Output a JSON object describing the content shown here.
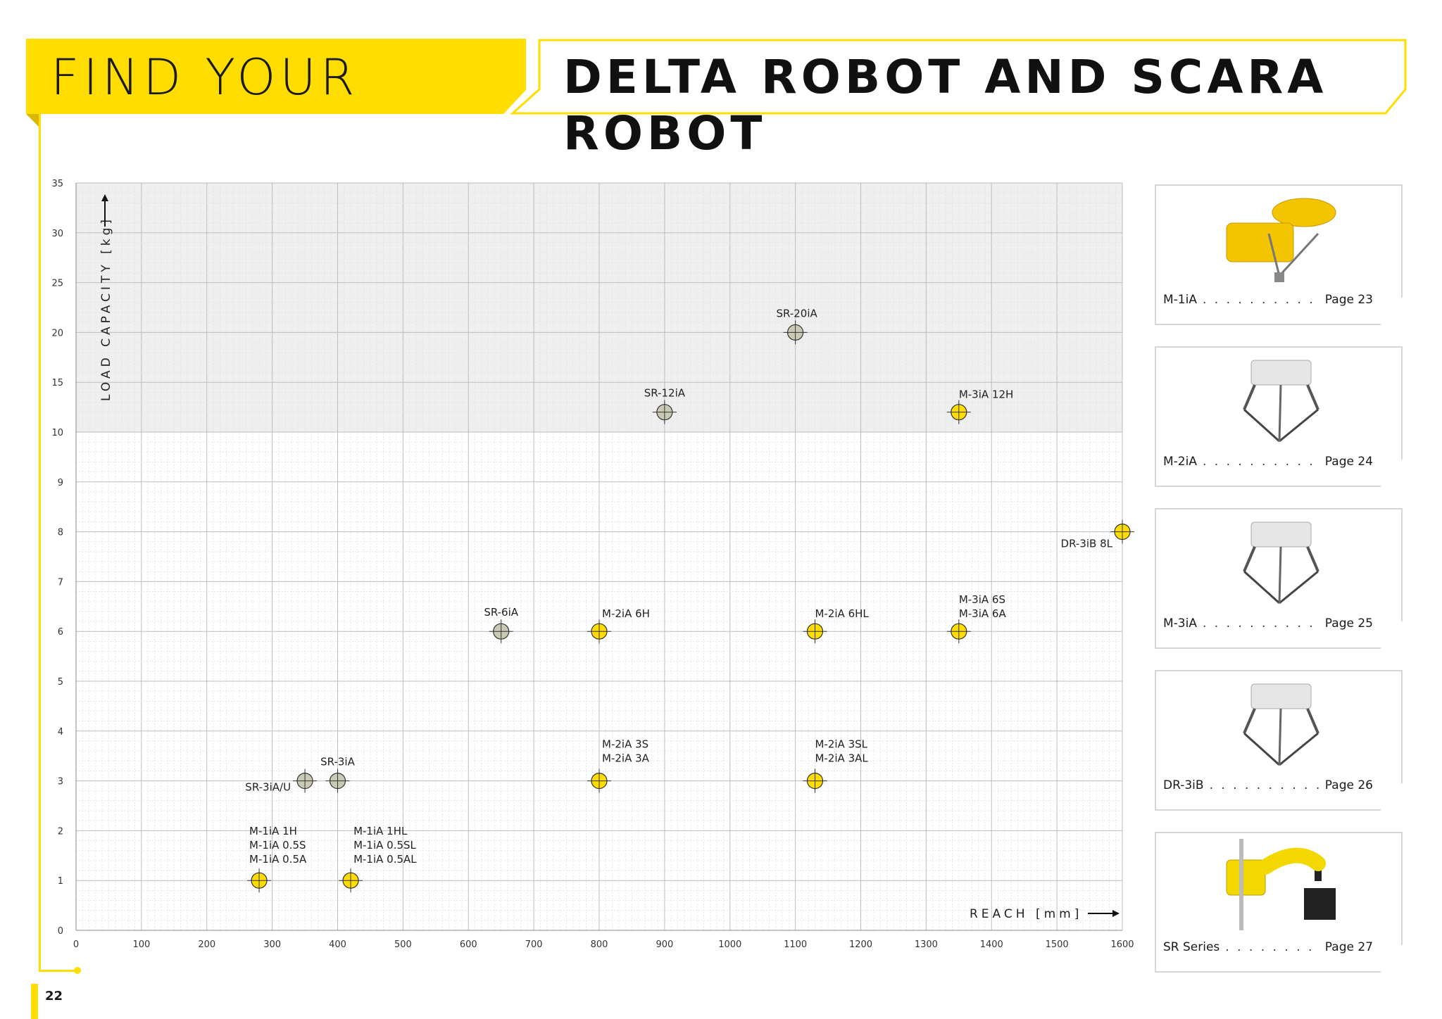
{
  "header": {
    "title_prefix": "FIND YOUR",
    "title_main": "DELTA ROBOT AND SCARA ROBOT"
  },
  "page_number": "22",
  "colors": {
    "accent": "#ffdd00",
    "delta_point": "#ffdd00",
    "scara_point": "#c9c9b4",
    "zone_fill": "#efefef"
  },
  "chart_data": {
    "type": "scatter",
    "xlabel": "REACH [mm]",
    "ylabel": "LOAD CAPACITY [kg]",
    "xlim": [
      0,
      1600
    ],
    "x_ticks": [
      0,
      100,
      200,
      300,
      400,
      500,
      600,
      700,
      800,
      900,
      1000,
      1100,
      1200,
      1300,
      1400,
      1500,
      1600
    ],
    "y_ticks": [
      0,
      1,
      2,
      3,
      4,
      5,
      6,
      7,
      8,
      9,
      10,
      15,
      20,
      25,
      30,
      35
    ],
    "y_scale": "piecewise linear: 0-10 kg in 1 kg steps, 10-35 kg in 5 kg steps (same spacing)",
    "shaded_region": [
      10,
      35
    ],
    "grid": true,
    "series": [
      {
        "points": [
          {
            "x": 280,
            "y": 1,
            "label": [
              "M-1iA 1H",
              "M-1iA 0.5S",
              "M-1iA 0.5A"
            ]
          },
          {
            "x": 420,
            "y": 1,
            "label": [
              "M-1iA 1HL",
              "M-1iA 0.5SL",
              "M-1iA 0.5AL"
            ]
          },
          {
            "x": 800,
            "y": 3,
            "label": [
              "M-2iA 3S",
              "M-2iA 3A"
            ]
          },
          {
            "x": 1130,
            "y": 3,
            "label": [
              "M-2iA 3SL",
              "M-2iA 3AL"
            ]
          },
          {
            "x": 800,
            "y": 6,
            "label": [
              "M-2iA 6H"
            ]
          },
          {
            "x": 1130,
            "y": 6,
            "label": [
              "M-2iA 6HL"
            ]
          },
          {
            "x": 1350,
            "y": 6,
            "label": [
              "M-3iA 6S",
              "M-3iA 6A"
            ]
          },
          {
            "x": 1350,
            "y": 12,
            "label": [
              "M-3iA 12H"
            ]
          },
          {
            "x": 1600,
            "y": 8,
            "label": [
              "DR-3iB 8L"
            ]
          }
        ]
      },
      {
        "points": [
          {
            "x": 350,
            "y": 3,
            "label": [
              "SR-3iA/U"
            ]
          },
          {
            "x": 400,
            "y": 3,
            "label": [
              "SR-3iA"
            ]
          },
          {
            "x": 650,
            "y": 6,
            "label": [
              "SR-6iA"
            ]
          },
          {
            "x": 900,
            "y": 12,
            "label": [
              "SR-12iA"
            ]
          },
          {
            "x": 1100,
            "y": 20,
            "label": [
              "SR-20iA"
            ]
          }
        ]
      }
    ]
  },
  "cards": [
    {
      "name": "M-1iA",
      "page": "Page 23",
      "icon": "delta-robot-m1ia-image",
      "color": "#f2c500"
    },
    {
      "name": "M-2iA",
      "page": "Page 24",
      "icon": "delta-robot-m2ia-image",
      "color": "#e6e6e6"
    },
    {
      "name": "M-3iA",
      "page": "Page 25",
      "icon": "delta-robot-m3ia-image",
      "color": "#e6e6e6"
    },
    {
      "name": "DR-3iB",
      "page": "Page 26",
      "icon": "delta-robot-dr3ib-image",
      "color": "#e6e6e6"
    },
    {
      "name": "SR Series",
      "page": "Page 27",
      "icon": "scara-robot-sr-image",
      "color": "#f2d800"
    }
  ]
}
